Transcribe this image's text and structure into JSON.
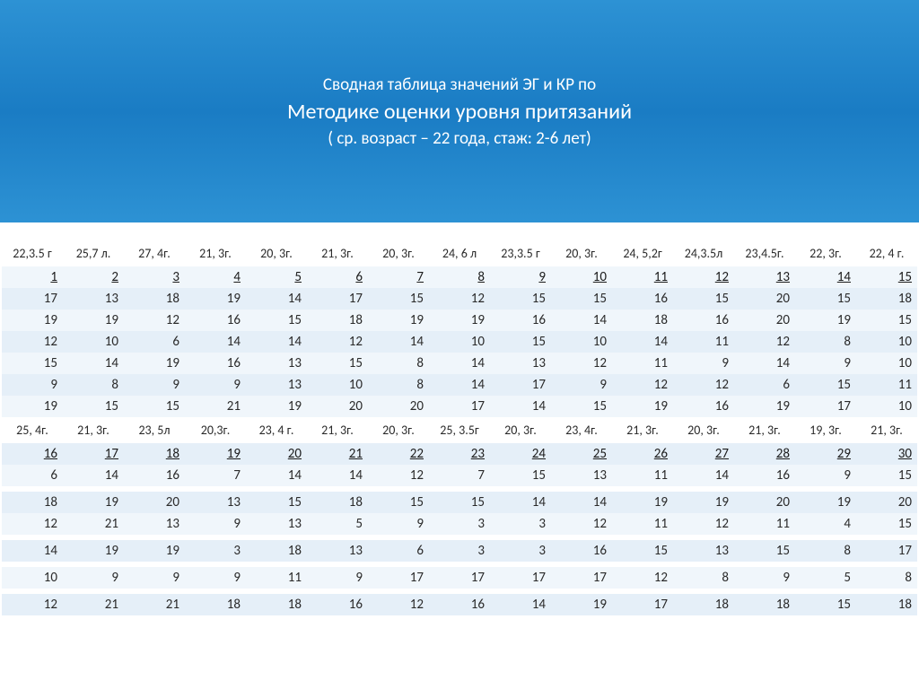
{
  "header": {
    "line1": "Сводная таблица значений ЭГ и КР по",
    "line2": "Методике оценки уровня притязаний",
    "line3": "( ср. возраст – 22 года, стаж: 2-6 лет)"
  },
  "table": {
    "type": "table",
    "columns_count": 15,
    "background_color": "#ffffff",
    "stripe_colors": [
      "#f0f6fb",
      "#e5eff8"
    ],
    "text_color": "#2a2a2a",
    "header_fontsize": 14,
    "cell_fontsize": 15,
    "block1": {
      "age_row": [
        "22,3.5 г",
        "25,7 л.",
        "27, 4г.",
        "21, 3г.",
        "20, 3г.",
        "21, 3г.",
        "20, 3г.",
        "24, 6 л",
        "23,3.5 г",
        "20, 3г.",
        "24, 5,2г",
        "24,3.5л",
        "23,4.5г.",
        "22, 3г.",
        "22, 4 г."
      ],
      "index_row": [
        "1",
        "2",
        "3",
        "4",
        "5",
        "6",
        "7",
        "8",
        "9",
        "10",
        "11",
        "12",
        "13",
        "14",
        "15"
      ],
      "data_rows": [
        [
          "17",
          "13",
          "18",
          "19",
          "14",
          "17",
          "15",
          "12",
          "15",
          "15",
          "16",
          "15",
          "20",
          "15",
          "18"
        ],
        [
          "19",
          "19",
          "12",
          "16",
          "15",
          "18",
          "19",
          "19",
          "16",
          "14",
          "18",
          "16",
          "20",
          "19",
          "15"
        ],
        [
          "12",
          "10",
          "6",
          "14",
          "14",
          "12",
          "14",
          "10",
          "15",
          "10",
          "14",
          "11",
          "12",
          "8",
          "10"
        ],
        [
          "15",
          "14",
          "19",
          "16",
          "13",
          "15",
          "8",
          "14",
          "13",
          "12",
          "11",
          "9",
          "14",
          "9",
          "10"
        ],
        [
          "9",
          "8",
          "9",
          "9",
          "13",
          "10",
          "8",
          "14",
          "17",
          "9",
          "12",
          "12",
          "6",
          "15",
          "11"
        ],
        [
          "19",
          "15",
          "15",
          "21",
          "19",
          "20",
          "20",
          "17",
          "14",
          "15",
          "19",
          "16",
          "19",
          "17",
          "10"
        ]
      ]
    },
    "block2": {
      "age_row": [
        "25, 4г.",
        "21, 3г.",
        "23, 5л",
        "20,3г.",
        "23, 4 г.",
        "21, 3г.",
        "20, 3г.",
        "25, 3.5г",
        "20, 3г.",
        "23, 4г.",
        "21, 3г.",
        "20, 3г.",
        "21, 3г.",
        "19, 3г.",
        "21, 3г."
      ],
      "index_row": [
        "16",
        "17",
        "18",
        "19",
        "20",
        "21",
        "22",
        "23",
        "24",
        "25",
        "26",
        "27",
        "28",
        "29",
        "30"
      ],
      "data_rows": [
        [
          "6",
          "14",
          "16",
          "7",
          "14",
          "14",
          "12",
          "7",
          "15",
          "13",
          "11",
          "14",
          "16",
          "9",
          "15"
        ],
        [
          "18",
          "19",
          "20",
          "13",
          "15",
          "18",
          "15",
          "15",
          "14",
          "14",
          "19",
          "19",
          "20",
          "19",
          "20"
        ],
        [
          "12",
          "21",
          "13",
          "9",
          "13",
          "5",
          "9",
          "3",
          "3",
          "12",
          "11",
          "12",
          "11",
          "4",
          "15"
        ],
        [
          "14",
          "19",
          "19",
          "3",
          "18",
          "13",
          "6",
          "3",
          "3",
          "16",
          "15",
          "13",
          "15",
          "8",
          "17"
        ],
        [
          "10",
          "9",
          "9",
          "9",
          "11",
          "9",
          "17",
          "17",
          "17",
          "17",
          "12",
          "8",
          "9",
          "5",
          "8"
        ],
        [
          "12",
          "21",
          "21",
          "18",
          "18",
          "16",
          "12",
          "16",
          "14",
          "19",
          "17",
          "18",
          "18",
          "15",
          "18"
        ]
      ]
    }
  }
}
